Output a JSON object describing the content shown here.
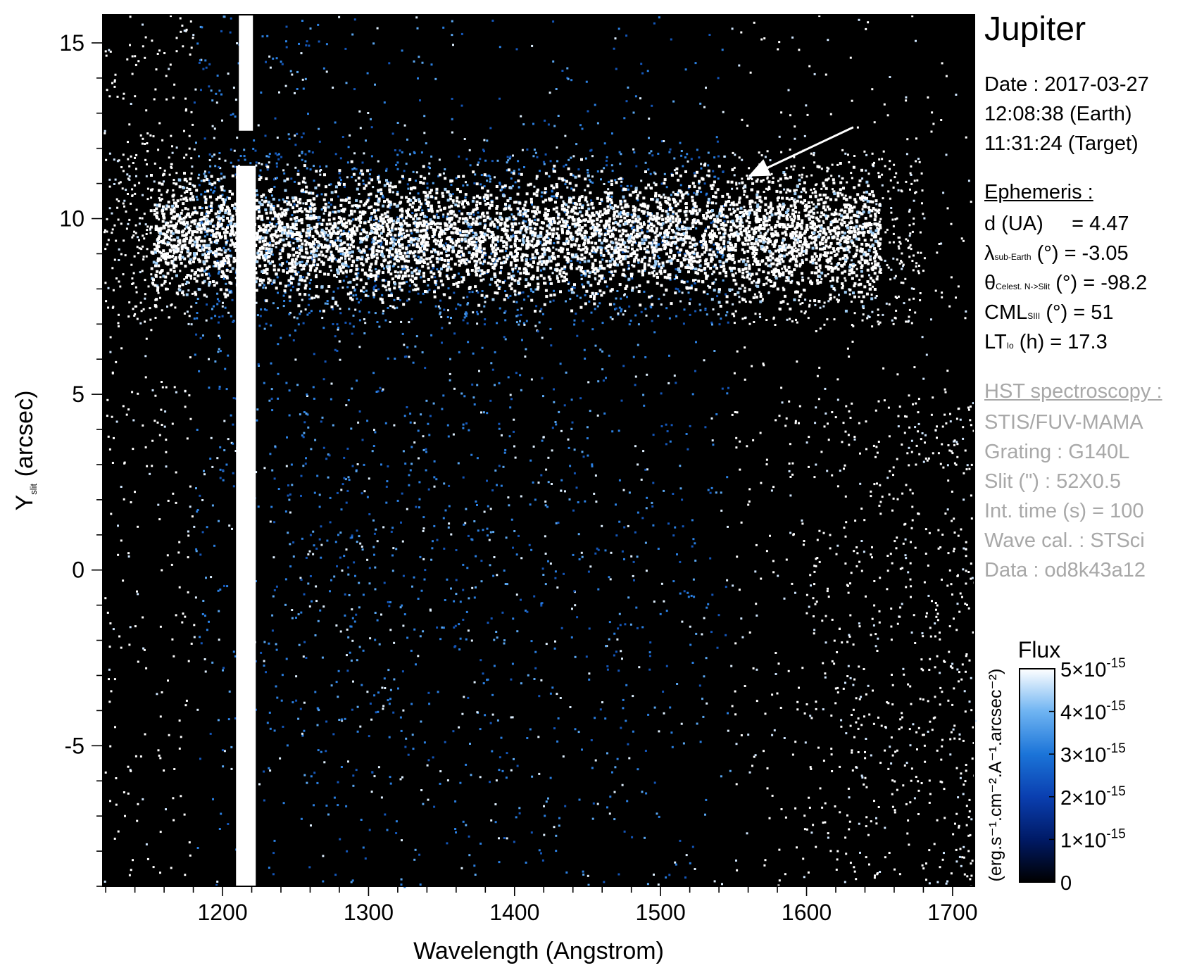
{
  "chart_data": {
    "type": "heatmap",
    "title": "",
    "xlabel": "Wavelength (Angstrom)",
    "ylabel_main": "Y",
    "ylabel_sub": "slit",
    "ylabel_unit": "(arcsec)",
    "xlim": [
      1118,
      1715
    ],
    "ylim": [
      -9.0,
      15.8
    ],
    "x_ticks": [
      1200,
      1300,
      1400,
      1500,
      1600,
      1700
    ],
    "x_tick_labels": [
      "1200",
      "1300",
      "1400",
      "1500",
      "1600",
      "1700"
    ],
    "x_minor_step": 20,
    "y_ticks": [
      15,
      10,
      5,
      0,
      -5
    ],
    "y_tick_labels": [
      "15",
      "10",
      "5",
      "0",
      "-5"
    ],
    "y_minor_step": 1,
    "features": {
      "lyman_alpha_column_wavelength": 1216,
      "bright_band_y_range": [
        7.7,
        11.3
      ],
      "bright_band_wavelength_range": [
        1150,
        1650
      ],
      "upper_column_segment_y_range": [
        12.5,
        15.8
      ],
      "arrow_tail": [
        1632,
        12.6
      ],
      "arrow_head": [
        1560,
        11.2
      ]
    },
    "colorbar": {
      "title": "Flux",
      "label": "(erg.s⁻¹.cm⁻².A⁻¹.arcsec⁻²)",
      "range": [
        0,
        5e-15
      ],
      "ticks": [
        {
          "value": 5e-15,
          "base": "5×10",
          "exp": "-15"
        },
        {
          "value": 4e-15,
          "base": "4×10",
          "exp": "-15"
        },
        {
          "value": 3e-15,
          "base": "3×10",
          "exp": "-15"
        },
        {
          "value": 2e-15,
          "base": "2×10",
          "exp": "-15"
        },
        {
          "value": 1e-15,
          "base": "1×10",
          "exp": "-15"
        },
        {
          "value": 0,
          "base": "0",
          "exp": ""
        }
      ],
      "colors": [
        "#000000",
        "#001a66",
        "#0a3fb0",
        "#1b74d8",
        "#6fb4f2",
        "#ffffff"
      ]
    }
  },
  "info": {
    "planet": "Jupiter",
    "date": "Date : 2017-03-27",
    "time_earth": "12:08:38 (Earth)",
    "time_target": "11:31:24 (Target)",
    "ephemeris_title": "Ephemeris :",
    "d_label": "d (UA)",
    "d_value": "= 4.47",
    "lambda_sym": "λ",
    "lambda_sub": "sub-Earth",
    "lambda_rest": "(°)  = -3.05",
    "theta_sym": "θ",
    "theta_sub": "Celest. N->Slit",
    "theta_rest": "(°) = -98.2",
    "cml_sym": "CML",
    "cml_sub": "SIII",
    "cml_rest": "(°) = 51",
    "lt_sym": "LT",
    "lt_sub": "Io",
    "lt_rest": "(h) = 17.3",
    "hst_title": "HST spectroscopy :",
    "instrument": "STIS/FUV-MAMA",
    "grating": "Grating : G140L",
    "slit": "Slit (\") : 52X0.5",
    "int_time": "Int. time (s) = 100",
    "wave_cal": "Wave cal. : STSci",
    "data_id": "Data : od8k43a12"
  }
}
